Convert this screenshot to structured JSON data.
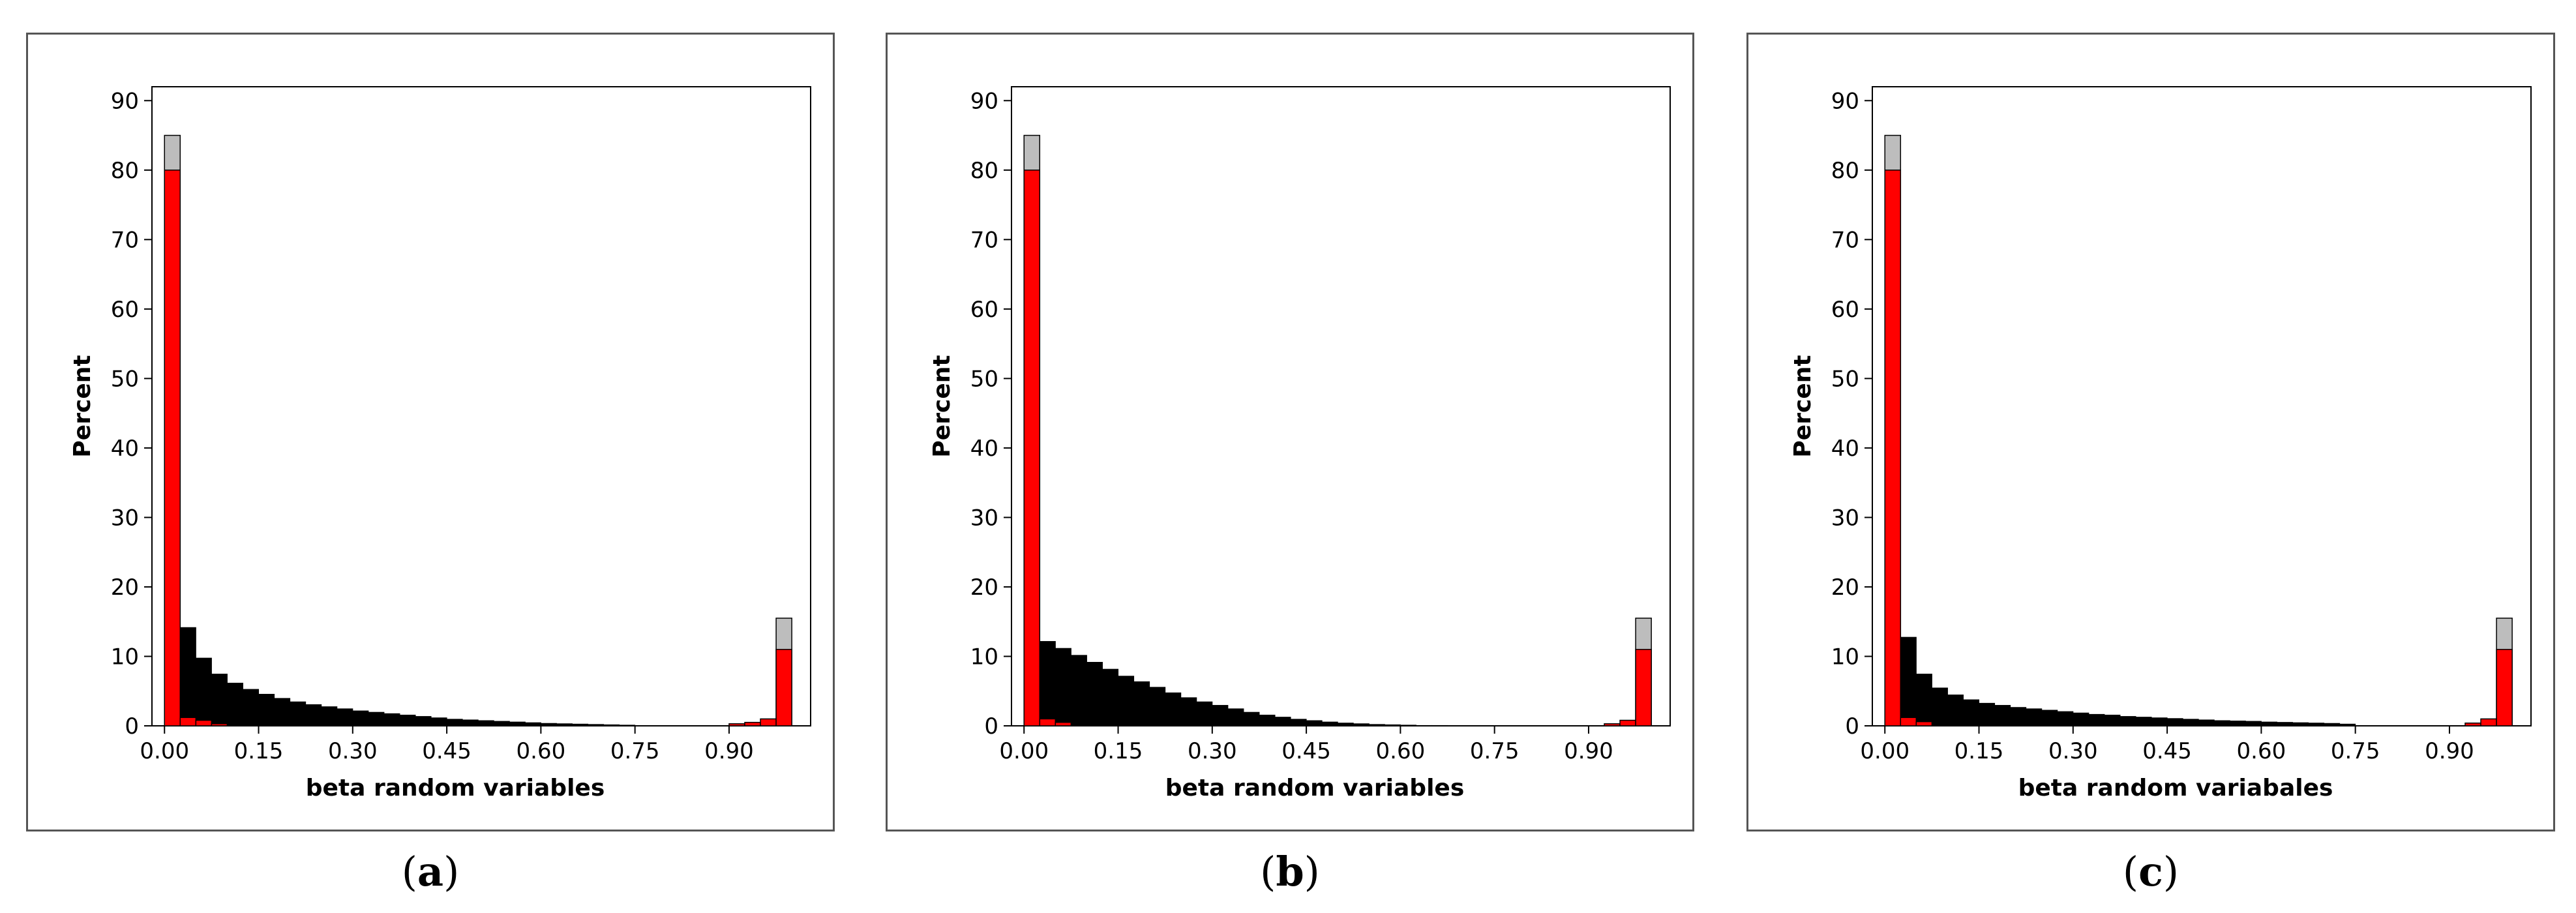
{
  "captions": [
    {
      "open": "(",
      "letter": "a",
      "close": ")"
    },
    {
      "open": "(",
      "letter": "b",
      "close": ")"
    },
    {
      "open": "(",
      "letter": "c",
      "close": ")"
    }
  ],
  "colors": {
    "black_bars": "#000000",
    "red_bars": "#ff0000",
    "gray_bars": "#bdbdbd",
    "frame": "#555555"
  },
  "chart_data": [
    {
      "type": "bar",
      "title": "",
      "xlabel": "beta random variables",
      "ylabel": "Percent",
      "xlim": [
        -0.02,
        1.03
      ],
      "ylim": [
        0,
        92
      ],
      "xticks": [
        "0.00",
        "0.15",
        "0.30",
        "0.45",
        "0.60",
        "0.75",
        "0.90"
      ],
      "yticks": [
        "0",
        "10",
        "20",
        "30",
        "40",
        "50",
        "60",
        "70",
        "80",
        "90"
      ],
      "bin_width": 0.025,
      "black_bins": [
        19.5,
        14.2,
        9.8,
        7.5,
        6.2,
        5.3,
        4.6,
        4.0,
        3.5,
        3.1,
        2.8,
        2.5,
        2.2,
        2.0,
        1.8,
        1.6,
        1.4,
        1.2,
        1.0,
        0.9,
        0.8,
        0.7,
        0.6,
        0.5,
        0.4,
        0.35,
        0.3,
        0.25,
        0.2,
        0.15
      ],
      "red_bins": {
        "x": [
          0.0,
          0.025,
          0.05,
          0.075,
          0.9,
          0.925,
          0.95,
          0.975
        ],
        "values": [
          80,
          1.2,
          0.8,
          0.3,
          0.3,
          0.5,
          1.0,
          11
        ]
      },
      "gray_bins": {
        "x": [
          0.0,
          0.975
        ],
        "values": [
          85,
          15.5
        ]
      }
    },
    {
      "type": "bar",
      "title": "",
      "xlabel": "beta random variables",
      "ylabel": "Percent",
      "xlim": [
        -0.02,
        1.03
      ],
      "ylim": [
        0,
        92
      ],
      "xticks": [
        "0.00",
        "0.15",
        "0.30",
        "0.45",
        "0.60",
        "0.75",
        "0.90"
      ],
      "yticks": [
        "0",
        "10",
        "20",
        "30",
        "40",
        "50",
        "60",
        "70",
        "80",
        "90"
      ],
      "bin_width": 0.025,
      "black_bins": [
        6.2,
        12.2,
        11.2,
        10.2,
        9.2,
        8.2,
        7.2,
        6.4,
        5.6,
        4.8,
        4.1,
        3.5,
        3.0,
        2.5,
        2.0,
        1.6,
        1.3,
        1.0,
        0.8,
        0.6,
        0.45,
        0.35,
        0.25,
        0.2,
        0.15,
        0.1,
        0.1,
        0.08,
        0.05,
        0.05
      ],
      "red_bins": {
        "x": [
          0.0,
          0.025,
          0.05,
          0.925,
          0.95,
          0.975
        ],
        "values": [
          80,
          1.0,
          0.5,
          0.3,
          0.8,
          11
        ]
      },
      "gray_bins": {
        "x": [
          0.0,
          0.975
        ],
        "values": [
          85,
          15.5
        ]
      }
    },
    {
      "type": "bar",
      "title": "",
      "xlabel": "beta random variabales",
      "ylabel": "Percent",
      "xlim": [
        -0.02,
        1.03
      ],
      "ylim": [
        0,
        92
      ],
      "xticks": [
        "0.00",
        "0.15",
        "0.30",
        "0.45",
        "0.60",
        "0.75",
        "0.90"
      ],
      "yticks": [
        "0",
        "10",
        "20",
        "30",
        "40",
        "50",
        "60",
        "70",
        "80",
        "90"
      ],
      "bin_width": 0.025,
      "black_bins": [
        31.5,
        12.8,
        7.5,
        5.5,
        4.5,
        3.8,
        3.3,
        3.0,
        2.7,
        2.5,
        2.3,
        2.1,
        1.9,
        1.7,
        1.6,
        1.4,
        1.3,
        1.2,
        1.1,
        1.0,
        0.9,
        0.8,
        0.75,
        0.7,
        0.6,
        0.55,
        0.5,
        0.45,
        0.4,
        0.3
      ],
      "red_bins": {
        "x": [
          0.0,
          0.025,
          0.05,
          0.925,
          0.95,
          0.975
        ],
        "values": [
          80,
          1.2,
          0.6,
          0.4,
          1.0,
          11
        ]
      },
      "gray_bins": {
        "x": [
          0.0,
          0.975
        ],
        "values": [
          85,
          15.5
        ]
      }
    }
  ]
}
